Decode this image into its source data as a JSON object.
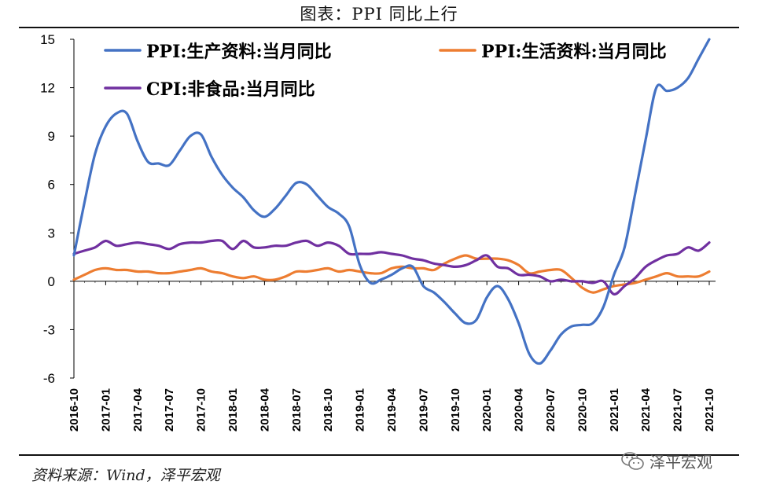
{
  "title": "图表：PPI 同比上行",
  "source": "资料来源：Wind，泽平宏观",
  "watermark": "泽平宏观",
  "watermark_icon": "wechat-icon",
  "colors": {
    "ppi_producer": "#4472C4",
    "ppi_living": "#ED7D31",
    "cpi_nonfood": "#7030A0",
    "axis": "#000000"
  },
  "chart_data": {
    "type": "line",
    "title": "PPI 同比上行",
    "xlabel": "",
    "ylabel": "",
    "ylim": [
      -6,
      15
    ],
    "yticks": [
      -6,
      -3,
      0,
      3,
      6,
      9,
      12,
      15
    ],
    "ytick_labels": [
      "-6",
      "-3",
      "0",
      "3",
      "6",
      "9",
      "12",
      "15"
    ],
    "x_tick_labels": [
      "2016-10",
      "2017-01",
      "2017-04",
      "2017-07",
      "2017-10",
      "2018-01",
      "2018-04",
      "2018-07",
      "2018-10",
      "2019-01",
      "2019-04",
      "2019-07",
      "2019-10",
      "2020-01",
      "2020-04",
      "2020-07",
      "2020-10",
      "2021-01",
      "2021-04",
      "2021-07",
      "2021-10"
    ],
    "x": [
      "2016-10",
      "2016-11",
      "2016-12",
      "2017-01",
      "2017-02",
      "2017-03",
      "2017-04",
      "2017-05",
      "2017-06",
      "2017-07",
      "2017-08",
      "2017-09",
      "2017-10",
      "2017-11",
      "2017-12",
      "2018-01",
      "2018-02",
      "2018-03",
      "2018-04",
      "2018-05",
      "2018-06",
      "2018-07",
      "2018-08",
      "2018-09",
      "2018-10",
      "2018-11",
      "2018-12",
      "2019-01",
      "2019-02",
      "2019-03",
      "2019-04",
      "2019-05",
      "2019-06",
      "2019-07",
      "2019-08",
      "2019-09",
      "2019-10",
      "2019-11",
      "2019-12",
      "2020-01",
      "2020-02",
      "2020-03",
      "2020-04",
      "2020-05",
      "2020-06",
      "2020-07",
      "2020-08",
      "2020-09",
      "2020-10",
      "2020-11",
      "2020-12",
      "2021-01",
      "2021-02",
      "2021-03",
      "2021-04",
      "2021-05",
      "2021-06",
      "2021-07",
      "2021-08",
      "2021-09",
      "2021-10"
    ],
    "legend_position": "top",
    "series": [
      {
        "name": "PPI:生产资料:当月同比",
        "color": "#4472C4",
        "values": [
          1.6,
          4.9,
          7.9,
          9.6,
          10.4,
          10.4,
          8.7,
          7.4,
          7.3,
          7.2,
          8.1,
          9.0,
          9.1,
          7.7,
          6.6,
          5.8,
          5.2,
          4.4,
          4.0,
          4.5,
          5.3,
          6.1,
          6.0,
          5.3,
          4.6,
          4.2,
          3.4,
          1.0,
          -0.1,
          0.1,
          0.4,
          0.8,
          0.9,
          -0.3,
          -0.7,
          -1.3,
          -2.0,
          -2.6,
          -2.4,
          -1.0,
          -0.3,
          -1.1,
          -2.6,
          -4.5,
          -5.1,
          -4.3,
          -3.3,
          -2.8,
          -2.7,
          -2.6,
          -1.6,
          0.4,
          2.1,
          5.4,
          8.8,
          12.0,
          11.8,
          12.0,
          12.6,
          13.8,
          15.0
        ]
      },
      {
        "name": "PPI:生活资料:当月同比",
        "color": "#ED7D31",
        "values": [
          0.1,
          0.4,
          0.7,
          0.8,
          0.7,
          0.7,
          0.6,
          0.6,
          0.5,
          0.5,
          0.6,
          0.7,
          0.8,
          0.6,
          0.5,
          0.3,
          0.2,
          0.3,
          0.1,
          0.1,
          0.3,
          0.6,
          0.6,
          0.7,
          0.8,
          0.6,
          0.7,
          0.6,
          0.5,
          0.5,
          0.8,
          0.9,
          0.8,
          0.8,
          0.7,
          1.1,
          1.4,
          1.6,
          1.4,
          1.4,
          1.4,
          1.3,
          1.0,
          0.5,
          0.6,
          0.7,
          0.7,
          0.2,
          -0.4,
          -0.7,
          -0.5,
          -0.3,
          -0.2,
          -0.1,
          0.1,
          0.3,
          0.5,
          0.3,
          0.3,
          0.3,
          0.6
        ]
      },
      {
        "name": "CPI:非食品:当月同比",
        "color": "#7030A0",
        "values": [
          1.7,
          1.9,
          2.1,
          2.5,
          2.2,
          2.3,
          2.4,
          2.3,
          2.2,
          2.0,
          2.3,
          2.4,
          2.4,
          2.5,
          2.5,
          2.0,
          2.5,
          2.1,
          2.1,
          2.2,
          2.2,
          2.4,
          2.5,
          2.2,
          2.4,
          2.2,
          1.7,
          1.7,
          1.7,
          1.8,
          1.7,
          1.6,
          1.4,
          1.3,
          1.1,
          1.0,
          0.9,
          1.0,
          1.3,
          1.6,
          0.9,
          0.8,
          0.4,
          0.4,
          0.3,
          0.0,
          0.1,
          0.0,
          0.0,
          -0.1,
          0.0,
          -0.8,
          -0.3,
          0.2,
          0.9,
          1.3,
          1.6,
          1.7,
          2.1,
          1.9,
          2.4
        ]
      }
    ]
  }
}
